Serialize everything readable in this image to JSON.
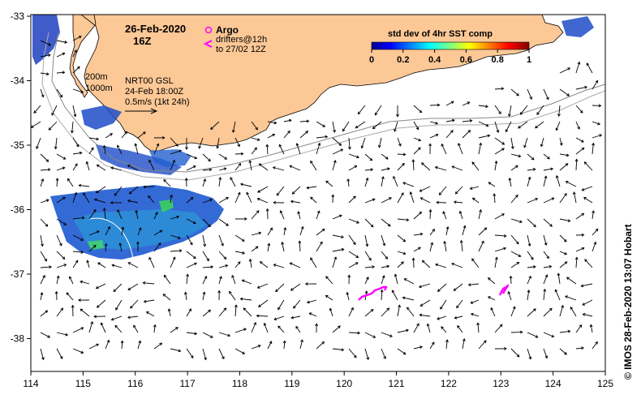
{
  "map": {
    "date_title": "26-Feb-2020",
    "time_title": "16Z",
    "argo_label": "Argo",
    "drifters_label": "drifters@12h",
    "drifters_sub": "to 27/02 12Z",
    "colorbar_title": "std dev of 4hr SST comp",
    "colorbar_ticks": [
      "0",
      "0.2",
      "0.4",
      "0.6",
      "0.8",
      "1"
    ],
    "depth_200": "200m",
    "depth_1000": "1000m",
    "model_label": "NRT00 GSL",
    "model_time": "24-Feb 18:00Z",
    "scale_label": "0.5m/s (1kt 24h)",
    "credit": "© IMOS 28-Feb-2020 13:07 Hobart",
    "lon_ticks": [
      "114",
      "115",
      "116",
      "117",
      "118",
      "119",
      "120",
      "121",
      "122",
      "123",
      "124",
      "125"
    ],
    "lat_ticks": [
      "-33",
      "-34",
      "-35",
      "-36",
      "-37",
      "-38"
    ],
    "land_color": "#FCC896",
    "drifter_color": "#FF00FF"
  }
}
